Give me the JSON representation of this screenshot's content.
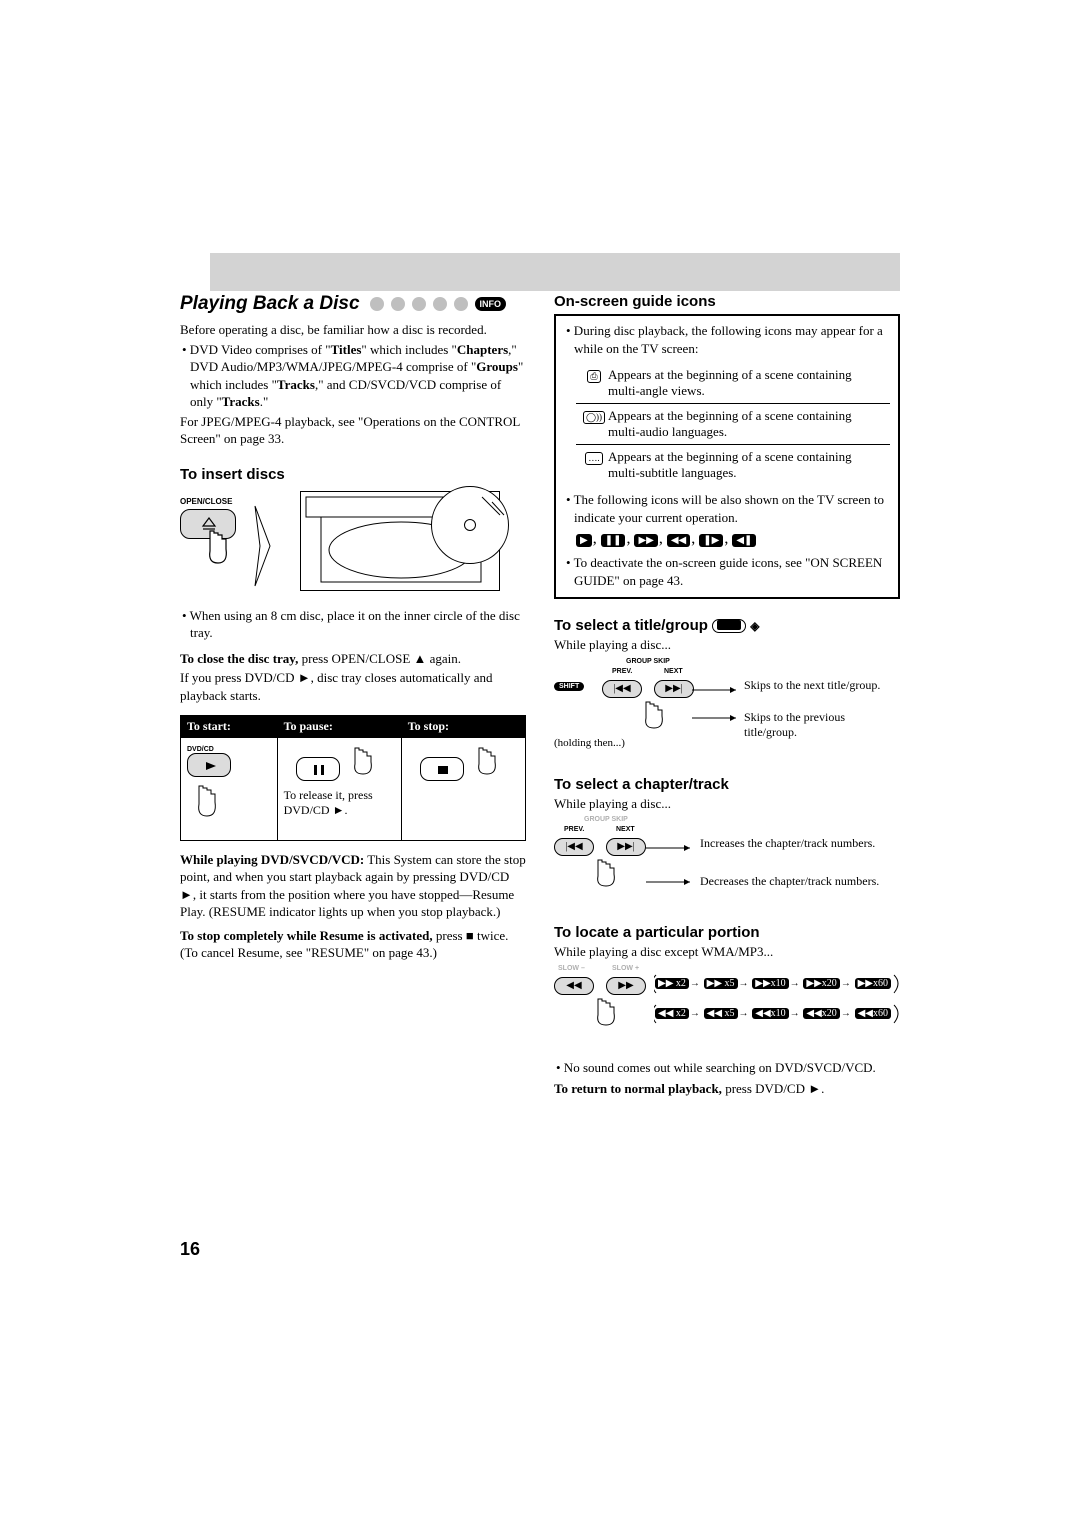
{
  "page_number": "16",
  "left": {
    "title": "Playing Back a Disc",
    "info_badge": "INFO",
    "intro": "Before operating a disc, be familiar how a disc is recorded.",
    "bullets_html": "• DVD Video comprises of \"<b>Titles</b>\" which includes \"<b>Chapters</b>,\" DVD Audio/MP3/WMA/JPEG/MPEG-4 comprise of \"<b>Groups</b>\" which includes \"<b>Tracks</b>,\" and CD/SVCD/VCD comprise of only \"<b>Tracks</b>.\"",
    "jpeg_note": "For JPEG/MPEG-4 playback, see \"Operations on the CONTROL Screen\" on page 33.",
    "insert_heading": "To insert discs",
    "openclose_label": "OPEN/CLOSE",
    "note_8cm": "• When using an 8 cm disc, place it on the inner circle of the disc tray.",
    "close_tray": "<b>To close the disc tray,</b> press OPEN/CLOSE ▲ again.",
    "press_dvd": "If you press DVD/CD ►, disc tray closes automatically and playback starts.",
    "table": {
      "headers": [
        "To start:",
        "To pause:",
        "To stop:"
      ],
      "dvdcd_label": "DVD/CD",
      "release_text": "To release it, press DVD/CD ►."
    },
    "while_playing": "<b>While playing DVD/SVCD/VCD:</b> This System can store the stop point, and when you start playback again by pressing DVD/CD ►, it starts from the position where you have stopped—Resume Play. (RESUME indicator lights up when you stop playback.)",
    "stop_completely": "<b>To stop completely while Resume is activated,</b> press ■ twice. (To cancel Resume, see \"RESUME\" on page 43.)"
  },
  "right": {
    "onscreen_heading": "On-screen guide icons",
    "onscreen_intro": "• During disc playback, the following icons may appear for a while on the TV screen:",
    "icon_rows": [
      "Appears at the beginning of a scene containing multi-angle views.",
      "Appears at the beginning of a scene containing multi-audio languages.",
      "Appears at the beginning of a scene containing multi-subtitle languages."
    ],
    "following_icons": "• The following icons will be also shown on the TV screen to indicate your current operation.",
    "deactivate": "• To deactivate the on-screen guide icons, see \"ON SCREEN GUIDE\" on page 43.",
    "select_title_heading": "To select a title/group",
    "while_playing1": "While playing a disc...",
    "group_skip_label": "GROUP SKIP",
    "prev_label": "PREV.",
    "next_label": "NEXT",
    "shift_label": "SHIFT",
    "holding": "(holding then...)",
    "skip_next": "Skips to the next title/group.",
    "skip_prev": "Skips to the previous title/group.",
    "select_chapter_heading": "To select a chapter/track",
    "while_playing2": "While playing a disc...",
    "inc_text": "Increases the chapter/track numbers.",
    "dec_text": "Decreases the chapter/track numbers.",
    "locate_heading": "To locate a particular portion",
    "while_playing3": "While playing a disc except WMA/MP3...",
    "slow_minus": "SLOW –",
    "slow_plus": "SLOW +",
    "speeds_fwd": [
      "▶▶ x2",
      "▶▶ x5",
      "▶▶x10",
      "▶▶x20",
      "▶▶x60"
    ],
    "speeds_rev": [
      "◀◀ x2",
      "◀◀ x5",
      "◀◀x10",
      "◀◀x20",
      "◀◀x60"
    ],
    "no_sound": "• No sound comes out while searching on DVD/SVCD/VCD.",
    "return_normal": "<b>To return to normal playback,</b> press DVD/CD ►."
  },
  "colors": {
    "gray": "#d3d3d3",
    "black": "#000000"
  }
}
